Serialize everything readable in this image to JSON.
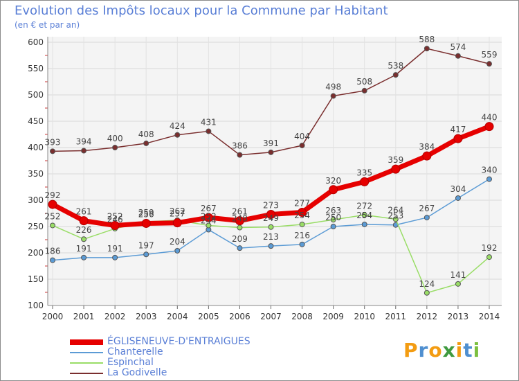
{
  "header": {
    "title": "Evolution des Impôts locaux pour la Commune par Habitant",
    "subtitle": "(en € et par an)"
  },
  "brand": {
    "text": "Proxiti",
    "letters": [
      "P",
      "r",
      "o",
      "x",
      "i",
      "t",
      "i"
    ],
    "colors": [
      "#f39c12",
      "#4f8fd0",
      "#f39c12",
      "#3f9a3f",
      "#f39c12",
      "#4f8fd0",
      "#7bbf3f"
    ]
  },
  "legend": {
    "items": [
      {
        "label": "ÉGLISENEUVE-D'ENTRAIGUES",
        "color": "#e60000"
      },
      {
        "label": "Chanterelle",
        "color": "#5b9bd5"
      },
      {
        "label": "Espinchal",
        "color": "#99dd66"
      },
      {
        "label": "La Godivelle",
        "color": "#7a2e2e"
      }
    ]
  },
  "chart_data": {
    "type": "line",
    "title": "Evolution des Impôts locaux pour la Commune par Habitant",
    "subtitle": "(en € et par an)",
    "x": [
      "2000",
      "2001",
      "2002",
      "2003",
      "2004",
      "2005",
      "2006",
      "2007",
      "2008",
      "2009",
      "2010",
      "2011",
      "2012",
      "2013",
      "2014"
    ],
    "ylim": [
      100,
      600
    ],
    "yticks": [
      100,
      150,
      200,
      250,
      300,
      350,
      400,
      450,
      500,
      550,
      600
    ],
    "grid": true,
    "legend_position": "bottom-left",
    "series": [
      {
        "name": "ÉGLISENEUVE-D'ENTRAIGUES",
        "color": "#e60000",
        "values": [
          292,
          261,
          252,
          256,
          257,
          267,
          261,
          273,
          277,
          320,
          335,
          359,
          384,
          417,
          440
        ]
      },
      {
        "name": "Chanterelle",
        "color": "#5b9bd5",
        "values": [
          186,
          191,
          191,
          197,
          204,
          244,
          209,
          213,
          216,
          250,
          254,
          253,
          267,
          304,
          340
        ]
      },
      {
        "name": "Espinchal",
        "color": "#99dd66",
        "values": [
          252,
          226,
          246,
          259,
          262,
          252,
          248,
          249,
          254,
          263,
          272,
          264,
          124,
          141,
          192
        ]
      },
      {
        "name": "La Godivelle",
        "color": "#7a2e2e",
        "values": [
          393,
          394,
          400,
          408,
          424,
          431,
          386,
          391,
          404,
          498,
          508,
          538,
          588,
          574,
          559
        ]
      }
    ],
    "data_labels": [
      [
        "292",
        "261",
        "252",
        "256",
        "257",
        "267",
        "261",
        "273",
        "277",
        "320",
        "335",
        "359",
        "384",
        "417",
        "440"
      ],
      [
        "186",
        "191",
        "191",
        "197",
        "204",
        "244",
        "209",
        "213",
        "216",
        "250",
        "254",
        "253",
        "267",
        "304",
        "340"
      ],
      [
        "252",
        "226",
        "246",
        "259",
        "262",
        "252",
        "248",
        "249",
        "254",
        "263",
        "272",
        "264",
        "124",
        "141",
        "192"
      ],
      [
        "393",
        "394",
        "400",
        "408",
        "424",
        "431",
        "386",
        "391",
        "404",
        "498",
        "508",
        "538",
        "588",
        "574",
        "559"
      ]
    ]
  }
}
